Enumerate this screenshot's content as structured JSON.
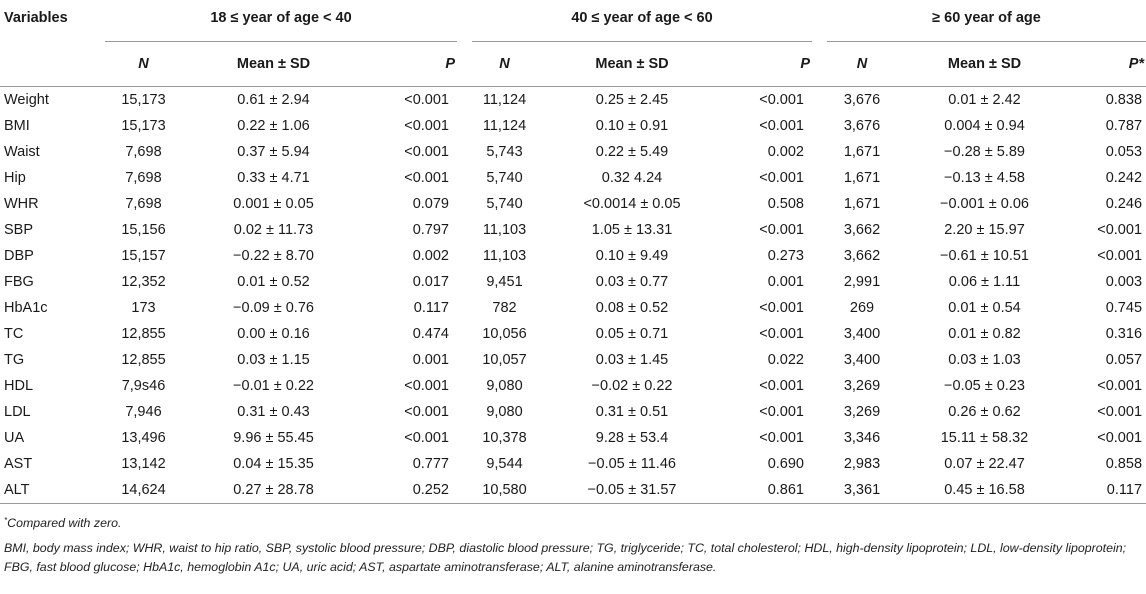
{
  "header": {
    "variables_label": "Variables",
    "groups": [
      "18 ≤ year of age < 40",
      "40 ≤ year of age < 60",
      "≥ 60 year of age"
    ],
    "subcols": [
      [
        "N",
        "Mean ± SD",
        "P"
      ],
      [
        "N",
        "Mean ± SD",
        "P"
      ],
      [
        "N",
        "Mean ± SD",
        "P*"
      ]
    ]
  },
  "rows": [
    {
      "var": "Weight",
      "g1": [
        "15,173",
        "0.61 ± 2.94",
        "<0.001"
      ],
      "g2": [
        "11,124",
        "0.25 ± 2.45",
        "<0.001"
      ],
      "g3": [
        "3,676",
        "0.01 ± 2.42",
        "0.838"
      ]
    },
    {
      "var": "BMI",
      "g1": [
        "15,173",
        "0.22 ± 1.06",
        "<0.001"
      ],
      "g2": [
        "11,124",
        "0.10 ± 0.91",
        "<0.001"
      ],
      "g3": [
        "3,676",
        "0.004 ± 0.94",
        "0.787"
      ]
    },
    {
      "var": "Waist",
      "g1": [
        "7,698",
        "0.37 ± 5.94",
        "<0.001"
      ],
      "g2": [
        "5,743",
        "0.22 ± 5.49",
        "0.002"
      ],
      "g3": [
        "1,671",
        "−0.28 ± 5.89",
        "0.053"
      ]
    },
    {
      "var": "Hip",
      "g1": [
        "7,698",
        "0.33 ± 4.71",
        "<0.001"
      ],
      "g2": [
        "5,740",
        "0.32 4.24",
        "<0.001"
      ],
      "g3": [
        "1,671",
        "−0.13 ± 4.58",
        "0.242"
      ]
    },
    {
      "var": "WHR",
      "g1": [
        "7,698",
        "0.001 ± 0.05",
        "0.079"
      ],
      "g2": [
        "5,740",
        "<0.0014 ± 0.05",
        "0.508"
      ],
      "g3": [
        "1,671",
        "−0.001 ± 0.06",
        "0.246"
      ]
    },
    {
      "var": "SBP",
      "g1": [
        "15,156",
        "0.02 ± 11.73",
        "0.797"
      ],
      "g2": [
        "11,103",
        "1.05 ± 13.31",
        "<0.001"
      ],
      "g3": [
        "3,662",
        "2.20 ± 15.97",
        "<0.001"
      ]
    },
    {
      "var": "DBP",
      "g1": [
        "15,157",
        "−0.22 ± 8.70",
        "0.002"
      ],
      "g2": [
        "11,103",
        "0.10 ± 9.49",
        "0.273"
      ],
      "g3": [
        "3,662",
        "−0.61 ± 10.51",
        "<0.001"
      ]
    },
    {
      "var": "FBG",
      "g1": [
        "12,352",
        "0.01 ± 0.52",
        "0.017"
      ],
      "g2": [
        "9,451",
        "0.03 ± 0.77",
        "0.001"
      ],
      "g3": [
        "2,991",
        "0.06 ± 1.11",
        "0.003"
      ]
    },
    {
      "var": "HbA1c",
      "g1": [
        "173",
        "−0.09 ± 0.76",
        "0.117"
      ],
      "g2": [
        "782",
        "0.08 ± 0.52",
        "<0.001"
      ],
      "g3": [
        "269",
        "0.01 ± 0.54",
        "0.745"
      ]
    },
    {
      "var": "TC",
      "g1": [
        "12,855",
        "0.00 ± 0.16",
        "0.474"
      ],
      "g2": [
        "10,056",
        "0.05 ± 0.71",
        "<0.001"
      ],
      "g3": [
        "3,400",
        "0.01 ± 0.82",
        "0.316"
      ]
    },
    {
      "var": "TG",
      "g1": [
        "12,855",
        "0.03 ± 1.15",
        "0.001"
      ],
      "g2": [
        "10,057",
        "0.03 ± 1.45",
        "0.022"
      ],
      "g3": [
        "3,400",
        "0.03 ± 1.03",
        "0.057"
      ]
    },
    {
      "var": "HDL",
      "g1": [
        "7,9s46",
        "−0.01 ± 0.22",
        "<0.001"
      ],
      "g2": [
        "9,080",
        "−0.02 ± 0.22",
        "<0.001"
      ],
      "g3": [
        "3,269",
        "−0.05 ± 0.23",
        "<0.001"
      ]
    },
    {
      "var": "LDL",
      "g1": [
        "7,946",
        "0.31 ± 0.43",
        "<0.001"
      ],
      "g2": [
        "9,080",
        "0.31 ± 0.51",
        "<0.001"
      ],
      "g3": [
        "3,269",
        "0.26 ± 0.62",
        "<0.001"
      ]
    },
    {
      "var": "UA",
      "g1": [
        "13,496",
        "9.96 ± 55.45",
        "<0.001"
      ],
      "g2": [
        "10,378",
        "9.28 ± 53.4",
        "<0.001"
      ],
      "g3": [
        "3,346",
        "15.11 ± 58.32",
        "<0.001"
      ]
    },
    {
      "var": "AST",
      "g1": [
        "13,142",
        "0.04 ± 15.35",
        "0.777"
      ],
      "g2": [
        "9,544",
        "−0.05 ± 11.46",
        "0.690"
      ],
      "g3": [
        "2,983",
        "0.07 ± 22.47",
        "0.858"
      ]
    },
    {
      "var": "ALT",
      "g1": [
        "14,624",
        "0.27 ± 28.78",
        "0.252"
      ],
      "g2": [
        "10,580",
        "−0.05 ± 31.57",
        "0.861"
      ],
      "g3": [
        "3,361",
        "0.45 ± 16.58",
        "0.117"
      ]
    }
  ],
  "footnotes": {
    "marker": "*",
    "compared": "Compared with zero.",
    "abbreviations": "BMI, body mass index; WHR, waist to hip ratio, SBP, systolic blood pressure; DBP, diastolic blood pressure; TG, triglyceride; TC, total cholesterol; HDL, high-density lipoprotein; LDL, low-density lipoprotein; FBG, fast blood glucose; HbA1c, hemoglobin A1c; UA, uric acid; AST, aspartate aminotransferase; ALT, alanine aminotransferase."
  }
}
